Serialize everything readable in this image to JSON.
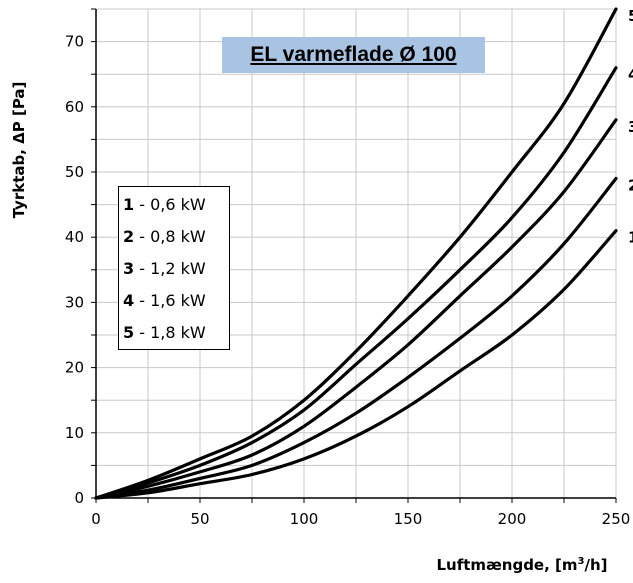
{
  "chart_data": {
    "type": "line",
    "title": "EL varmeflade  Ø 100",
    "xlabel": "Luftmængde, [m³/h]",
    "ylabel": "Tyrktab, ΔP [Pa]",
    "xlim": [
      0,
      250
    ],
    "ylim": [
      0,
      75
    ],
    "x_ticks": [
      "0",
      "50",
      "100",
      "150",
      "200",
      "250"
    ],
    "y_ticks": [
      "0",
      "10",
      "20",
      "30",
      "40",
      "50",
      "60",
      "70"
    ],
    "grid": true,
    "legend_placement": "left",
    "legend": [
      {
        "num": "1",
        "text": " - 0,6 kW"
      },
      {
        "num": "2",
        "text": " - 0,8 kW"
      },
      {
        "num": "3",
        "text": " - 1,2 kW"
      },
      {
        "num": "4",
        "text": " - 1,6 kW"
      },
      {
        "num": "5",
        "text": " - 1,8 kW"
      }
    ],
    "x": [
      0,
      25,
      50,
      75,
      100,
      125,
      150,
      175,
      200,
      225,
      250
    ],
    "series": [
      {
        "name": "1",
        "values": [
          0,
          0.8,
          2.2,
          3.6,
          6,
          9.5,
          14,
          19.5,
          25,
          32,
          41
        ]
      },
      {
        "name": "2",
        "values": [
          0,
          1.2,
          3,
          5,
          8.5,
          13,
          18.5,
          24.5,
          31,
          39,
          49
        ]
      },
      {
        "name": "3",
        "values": [
          0,
          1.8,
          4,
          6.6,
          11,
          17,
          23.5,
          31,
          38.5,
          47,
          58
        ]
      },
      {
        "name": "4",
        "values": [
          0,
          2.3,
          5,
          8.5,
          13.5,
          20.5,
          27.5,
          35,
          43,
          53,
          66
        ]
      },
      {
        "name": "5",
        "values": [
          0,
          2.7,
          6,
          9.5,
          15,
          22.5,
          31,
          40,
          50,
          60.5,
          75
        ]
      }
    ]
  }
}
